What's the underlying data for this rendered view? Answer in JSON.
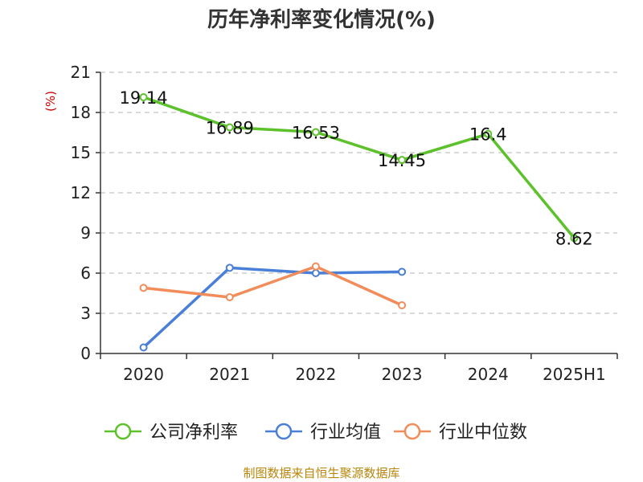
{
  "chart_data": {
    "type": "line",
    "title": "历年净利率变化情况(%)",
    "ylabel": "(%)",
    "categories": [
      "2020",
      "2021",
      "2022",
      "2023",
      "2024",
      "2025H1"
    ],
    "ylim": [
      0,
      21
    ],
    "yticks": [
      0,
      3,
      6,
      9,
      12,
      15,
      18,
      21
    ],
    "grid": true,
    "legend_position": "bottom",
    "series": [
      {
        "name": "公司净利率",
        "color": "#5cc12a",
        "values": [
          19.14,
          16.89,
          16.53,
          14.45,
          16.4,
          8.62
        ],
        "labels": [
          "19.14",
          "16.89",
          "16.53",
          "14.45",
          "16.4",
          "8.62"
        ]
      },
      {
        "name": "行业均值",
        "color": "#4a7fd8",
        "values": [
          0.45,
          6.4,
          6.0,
          6.1,
          null,
          null
        ]
      },
      {
        "name": "行业中位数",
        "color": "#f28c5a",
        "values": [
          4.9,
          4.2,
          6.5,
          3.6,
          null,
          null
        ]
      }
    ]
  },
  "source": "制图数据来自恒生聚源数据库"
}
